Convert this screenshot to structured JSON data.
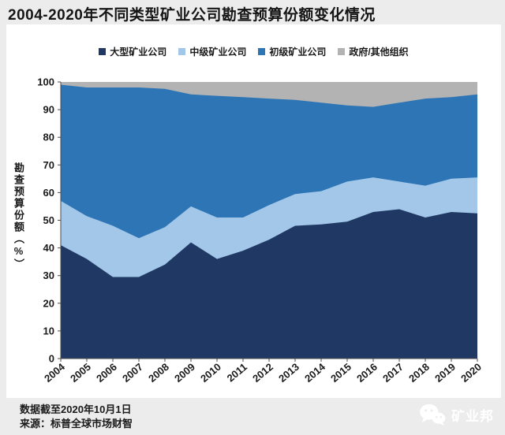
{
  "page": {
    "title": "2004-2020年不同类型矿业公司勘查预算份额变化情况",
    "footer": {
      "line1": "数据截至2020年10月1日",
      "line2": "来源：标普全球市场财智"
    },
    "logo": {
      "text": "矿业邦",
      "icon": "wechat-icon"
    }
  },
  "colors": {
    "page_background": "#ececec",
    "panel_background": "#ffffff",
    "axis": "#4d4d4d",
    "tick_label": "#1a1a1a",
    "major_companies": "#1f3864",
    "intermediate_companies": "#a3c7e8",
    "junior_companies": "#2e75b5",
    "government_other": "#b3b3b3"
  },
  "chart_data": {
    "type": "area",
    "stacked": true,
    "unit": "%",
    "title": "2004-2020年不同类型矿业公司勘查预算份额变化情况",
    "xlabel": "",
    "ylabel": "勘查预算份额（%）",
    "ylim": [
      0,
      100
    ],
    "yticks": [
      0,
      10,
      20,
      30,
      40,
      50,
      60,
      70,
      80,
      90,
      100
    ],
    "grid": false,
    "legend_position": "top",
    "categories": [
      2004,
      2005,
      2006,
      2007,
      2008,
      2009,
      2010,
      2011,
      2012,
      2013,
      2014,
      2015,
      2016,
      2017,
      2018,
      2019,
      2020
    ],
    "series": [
      {
        "name": "大型矿业公司",
        "color": "#1f3864",
        "values": [
          41,
          36,
          29.5,
          29.5,
          34,
          42,
          36,
          39,
          43,
          48,
          48.5,
          49.5,
          53,
          54,
          51,
          53,
          52.5
        ]
      },
      {
        "name": "中级矿业公司",
        "color": "#a3c7e8",
        "values": [
          16,
          15.5,
          18.5,
          14,
          13.5,
          13,
          15,
          12,
          12.5,
          11.5,
          12,
          14.5,
          12.5,
          10,
          11.5,
          12,
          13
        ]
      },
      {
        "name": "初级矿业公司",
        "color": "#2e75b5",
        "values": [
          42,
          46.5,
          50,
          54.5,
          50,
          40.5,
          44,
          43.5,
          38.5,
          34,
          32,
          27.5,
          25.5,
          28.5,
          31.5,
          29.5,
          30
        ]
      },
      {
        "name": "政府/其他组织",
        "color": "#b3b3b3",
        "values": [
          1,
          2,
          2,
          2,
          2.5,
          4.5,
          5,
          5.5,
          6,
          6.5,
          7.5,
          8.5,
          9,
          7.5,
          6,
          5.5,
          4.5
        ]
      }
    ]
  }
}
